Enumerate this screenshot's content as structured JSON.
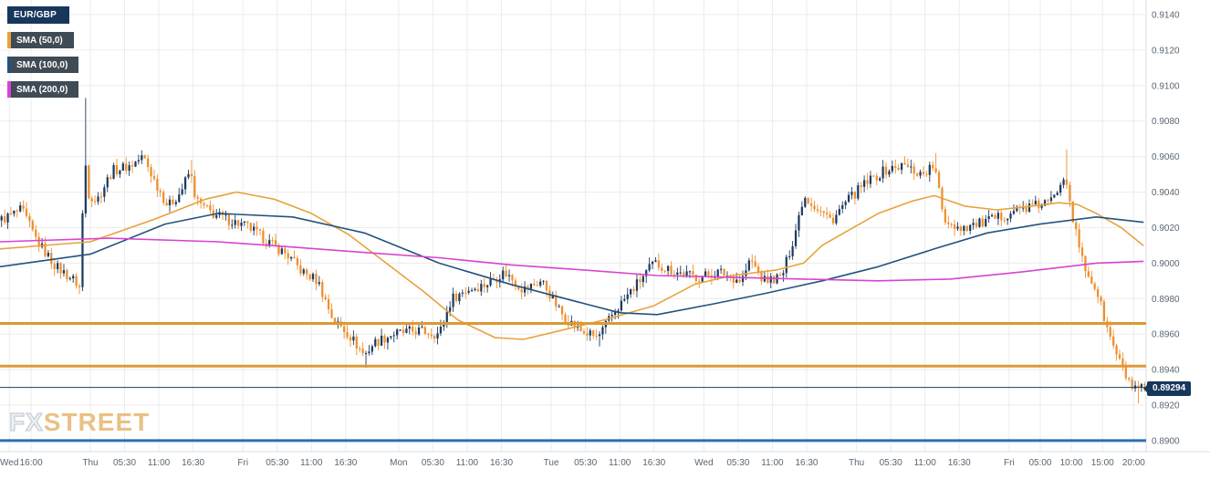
{
  "legend": {
    "symbol_label": "EUR/GBP",
    "sma_items": [
      {
        "label": "SMA (50,0)",
        "color": "#e8a33d"
      },
      {
        "label": "SMA (100,0)",
        "color": "#24527e"
      },
      {
        "label": "SMA (200,0)",
        "color": "#d943d0"
      }
    ]
  },
  "watermark": {
    "fx": "FX",
    "street": "STREET"
  },
  "chart_data": {
    "type": "candlestick",
    "symbol": "EUR/GBP",
    "interval": "30m",
    "candle_count": 368,
    "colors": {
      "up": "#1d3b5f",
      "down": "#ee8f2d",
      "grid": "#ececec",
      "border": "#d9dde2",
      "axis_text": "#5a6672",
      "sma50": "#e8a33d",
      "sma100": "#24527e",
      "sma200": "#d943d0",
      "level_orange": "#dd9933",
      "level_navy": "#1d3b5f",
      "level_blue": "#2e6db4",
      "badge_bg": "#17375c"
    },
    "y_axis": {
      "min": 0.88938,
      "max": 0.91482,
      "tick_labels": [
        "0.9140",
        "0.9120",
        "0.9100",
        "0.9080",
        "0.9060",
        "0.9040",
        "0.9020",
        "0.9000",
        "0.8980",
        "0.8960",
        "0.8940",
        "0.8920",
        "0.8900"
      ]
    },
    "x_axis": {
      "labels": [
        {
          "text": "Wed",
          "i": 3
        },
        {
          "text": "16:00",
          "i": 10
        },
        {
          "text": "Thu",
          "i": 29
        },
        {
          "text": "05:30",
          "i": 40
        },
        {
          "text": "11:00",
          "i": 51
        },
        {
          "text": "16:30",
          "i": 62
        },
        {
          "text": "Fri",
          "i": 78
        },
        {
          "text": "05:30",
          "i": 89
        },
        {
          "text": "11:00",
          "i": 100
        },
        {
          "text": "16:30",
          "i": 111
        },
        {
          "text": "Mon",
          "i": 128
        },
        {
          "text": "05:30",
          "i": 139
        },
        {
          "text": "11:00",
          "i": 150
        },
        {
          "text": "16:30",
          "i": 161
        },
        {
          "text": "Tue",
          "i": 177
        },
        {
          "text": "05:30",
          "i": 188
        },
        {
          "text": "11:00",
          "i": 199
        },
        {
          "text": "16:30",
          "i": 210
        },
        {
          "text": "Wed",
          "i": 226
        },
        {
          "text": "05:30",
          "i": 237
        },
        {
          "text": "11:00",
          "i": 248
        },
        {
          "text": "16:30",
          "i": 259
        },
        {
          "text": "Thu",
          "i": 275
        },
        {
          "text": "05:30",
          "i": 286
        },
        {
          "text": "11:00",
          "i": 297
        },
        {
          "text": "16:30",
          "i": 308
        },
        {
          "text": "Fri",
          "i": 324
        },
        {
          "text": "05:00",
          "i": 334
        },
        {
          "text": "10:00",
          "i": 344
        },
        {
          "text": "15:00",
          "i": 354
        },
        {
          "text": "20:00",
          "i": 364
        }
      ]
    },
    "current_price": {
      "label": "0.89294",
      "value": 0.89294
    },
    "levels": [
      {
        "value": 0.8966,
        "color_key": "level_orange",
        "width": 3
      },
      {
        "value": 0.8942,
        "color_key": "level_orange",
        "width": 3
      },
      {
        "value": 0.893,
        "color_key": "level_navy",
        "width": 1
      },
      {
        "value": 0.89,
        "color_key": "level_blue",
        "width": 3
      }
    ],
    "noise": 0.0006,
    "wick": 0.0004,
    "price_path": [
      [
        0,
        0.9024
      ],
      [
        7,
        0.903
      ],
      [
        12,
        0.9012
      ],
      [
        18,
        0.8998
      ],
      [
        24,
        0.899
      ],
      [
        26,
        0.8985
      ],
      [
        27,
        0.907
      ],
      [
        28,
        0.904
      ],
      [
        31,
        0.9035
      ],
      [
        36,
        0.9052
      ],
      [
        42,
        0.9055
      ],
      [
        46,
        0.906
      ],
      [
        50,
        0.9045
      ],
      [
        54,
        0.9032
      ],
      [
        58,
        0.904
      ],
      [
        61,
        0.9052
      ],
      [
        63,
        0.9035
      ],
      [
        68,
        0.9028
      ],
      [
        74,
        0.9024
      ],
      [
        80,
        0.902
      ],
      [
        86,
        0.9012
      ],
      [
        92,
        0.9005
      ],
      [
        97,
        0.8995
      ],
      [
        102,
        0.899
      ],
      [
        107,
        0.8968
      ],
      [
        112,
        0.896
      ],
      [
        117,
        0.8948
      ],
      [
        120,
        0.8955
      ],
      [
        126,
        0.896
      ],
      [
        134,
        0.8962
      ],
      [
        141,
        0.896
      ],
      [
        145,
        0.898
      ],
      [
        150,
        0.8985
      ],
      [
        156,
        0.8988
      ],
      [
        162,
        0.8995
      ],
      [
        168,
        0.8985
      ],
      [
        174,
        0.899
      ],
      [
        180,
        0.8972
      ],
      [
        186,
        0.8962
      ],
      [
        192,
        0.8958
      ],
      [
        197,
        0.8972
      ],
      [
        203,
        0.8985
      ],
      [
        210,
        0.9
      ],
      [
        217,
        0.8995
      ],
      [
        224,
        0.8992
      ],
      [
        231,
        0.8995
      ],
      [
        238,
        0.899
      ],
      [
        241,
        0.9002
      ],
      [
        245,
        0.899
      ],
      [
        251,
        0.8992
      ],
      [
        255,
        0.9015
      ],
      [
        258,
        0.9038
      ],
      [
        263,
        0.903
      ],
      [
        267,
        0.9024
      ],
      [
        272,
        0.9035
      ],
      [
        278,
        0.9045
      ],
      [
        284,
        0.9052
      ],
      [
        290,
        0.9055
      ],
      [
        296,
        0.905
      ],
      [
        300,
        0.9055
      ],
      [
        303,
        0.9025
      ],
      [
        308,
        0.902
      ],
      [
        314,
        0.9022
      ],
      [
        320,
        0.9025
      ],
      [
        326,
        0.903
      ],
      [
        332,
        0.9032
      ],
      [
        338,
        0.9035
      ],
      [
        342,
        0.9052
      ],
      [
        345,
        0.902
      ],
      [
        348,
        0.8998
      ],
      [
        352,
        0.8985
      ],
      [
        356,
        0.896
      ],
      [
        360,
        0.8942
      ],
      [
        364,
        0.8928
      ],
      [
        367,
        0.8929
      ]
    ],
    "spikes": [
      {
        "i": 27,
        "high": 0.9093
      },
      {
        "i": 61,
        "high": 0.9058
      },
      {
        "i": 117,
        "low": 0.8941
      },
      {
        "i": 192,
        "low": 0.8953
      },
      {
        "i": 300,
        "high": 0.9062
      },
      {
        "i": 342,
        "high": 0.9064
      },
      {
        "i": 365,
        "low": 0.8921
      }
    ],
    "sma": [
      {
        "name": "SMA 50",
        "color_key": "sma50",
        "points": [
          [
            0,
            0.9008
          ],
          [
            29,
            0.9012
          ],
          [
            50,
            0.9025
          ],
          [
            66,
            0.9036
          ],
          [
            76,
            0.904
          ],
          [
            88,
            0.9036
          ],
          [
            100,
            0.9028
          ],
          [
            112,
            0.9016
          ],
          [
            124,
            0.9
          ],
          [
            136,
            0.8984
          ],
          [
            147,
            0.8968
          ],
          [
            159,
            0.8958
          ],
          [
            168,
            0.8957
          ],
          [
            180,
            0.8962
          ],
          [
            194,
            0.8968
          ],
          [
            210,
            0.8976
          ],
          [
            223,
            0.8988
          ],
          [
            235,
            0.8993
          ],
          [
            249,
            0.8996
          ],
          [
            258,
            0.9
          ],
          [
            264,
            0.901
          ],
          [
            272,
            0.9018
          ],
          [
            282,
            0.9028
          ],
          [
            293,
            0.9035
          ],
          [
            300,
            0.9038
          ],
          [
            310,
            0.9032
          ],
          [
            320,
            0.903
          ],
          [
            331,
            0.9032
          ],
          [
            340,
            0.9034
          ],
          [
            346,
            0.9033
          ],
          [
            352,
            0.9028
          ],
          [
            360,
            0.902
          ],
          [
            367,
            0.901
          ]
        ]
      },
      {
        "name": "SMA 100",
        "color_key": "sma100",
        "points": [
          [
            0,
            0.8998
          ],
          [
            29,
            0.9005
          ],
          [
            53,
            0.9022
          ],
          [
            70,
            0.9028
          ],
          [
            94,
            0.9026
          ],
          [
            117,
            0.9017
          ],
          [
            141,
            0.9
          ],
          [
            164,
            0.8988
          ],
          [
            188,
            0.8977
          ],
          [
            199,
            0.8972
          ],
          [
            211,
            0.8971
          ],
          [
            229,
            0.8977
          ],
          [
            246,
            0.8983
          ],
          [
            264,
            0.899
          ],
          [
            282,
            0.8998
          ],
          [
            300,
            0.9008
          ],
          [
            317,
            0.9017
          ],
          [
            334,
            0.9022
          ],
          [
            352,
            0.9026
          ],
          [
            367,
            0.9023
          ]
        ]
      },
      {
        "name": "SMA 200",
        "color_key": "sma200",
        "points": [
          [
            0,
            0.9012
          ],
          [
            35,
            0.9014
          ],
          [
            70,
            0.9012
          ],
          [
            94,
            0.9009
          ],
          [
            117,
            0.9006
          ],
          [
            141,
            0.9003
          ],
          [
            164,
            0.8999
          ],
          [
            188,
            0.8996
          ],
          [
            211,
            0.8993
          ],
          [
            235,
            0.8992
          ],
          [
            258,
            0.8991
          ],
          [
            282,
            0.899
          ],
          [
            305,
            0.8991
          ],
          [
            328,
            0.8995
          ],
          [
            352,
            0.9
          ],
          [
            367,
            0.9001
          ]
        ]
      }
    ]
  }
}
